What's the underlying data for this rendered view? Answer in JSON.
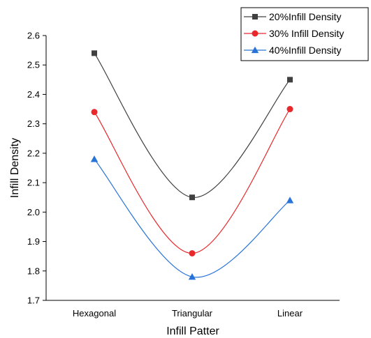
{
  "chart_data": {
    "type": "line",
    "title": "",
    "xlabel": "Infill Patter",
    "ylabel": "Infill Density",
    "categories": [
      "Hexagonal",
      "Triangular",
      "Linear"
    ],
    "ylim": [
      1.7,
      2.6
    ],
    "yticks": [
      "1.7",
      "1.8",
      "1.9",
      "2.0",
      "2.1",
      "2.2",
      "2.3",
      "2.4",
      "2.5",
      "2.6"
    ],
    "grid": false,
    "legend_position": "top-right",
    "smooth": true,
    "series": [
      {
        "name": "20%Infill Density",
        "values": [
          2.54,
          2.05,
          2.45
        ],
        "color": "#404040",
        "marker": "square"
      },
      {
        "name": "30% Infill Density",
        "values": [
          2.34,
          1.86,
          2.35
        ],
        "color": "#e8282b",
        "marker": "circle"
      },
      {
        "name": "40%Infill Density",
        "values": [
          2.18,
          1.78,
          2.04
        ],
        "color": "#2873d8",
        "marker": "triangle"
      }
    ]
  }
}
